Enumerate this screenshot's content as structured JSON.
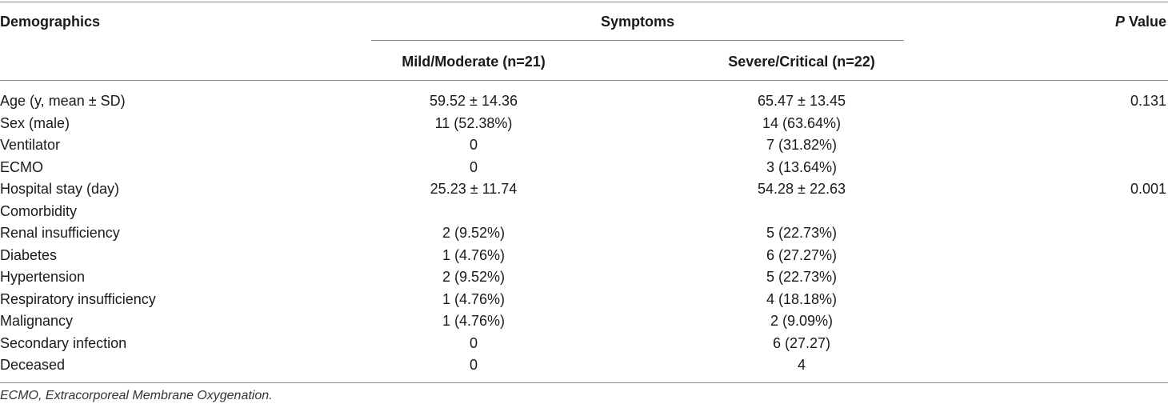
{
  "header": {
    "demographics": "Demographics",
    "symptoms": "Symptoms",
    "p_letter": "P",
    "p_value_word": " Value",
    "col_mild": "Mild/Moderate (n=21)",
    "col_severe": "Severe/Critical (n=22)"
  },
  "rows": [
    {
      "label": "Age (y, mean ± SD)",
      "mild": "59.52 ± 14.36",
      "severe": "65.47 ± 13.45",
      "p": "0.131"
    },
    {
      "label": "Sex (male)",
      "mild": "11 (52.38%)",
      "severe": "14 (63.64%)",
      "p": ""
    },
    {
      "label": "Ventilator",
      "mild": "0",
      "severe": "7 (31.82%)",
      "p": ""
    },
    {
      "label": "ECMO",
      "mild": "0",
      "severe": "3 (13.64%)",
      "p": ""
    },
    {
      "label": "Hospital stay (day)",
      "mild": "25.23 ± 11.74",
      "severe": "54.28 ± 22.63",
      "p": "0.001"
    },
    {
      "label": "Comorbidity",
      "mild": "",
      "severe": "",
      "p": ""
    },
    {
      "label": "Renal insufficiency",
      "mild": "2 (9.52%)",
      "severe": "5 (22.73%)",
      "p": ""
    },
    {
      "label": "Diabetes",
      "mild": "1 (4.76%)",
      "severe": "6 (27.27%)",
      "p": ""
    },
    {
      "label": "Hypertension",
      "mild": "2 (9.52%)",
      "severe": "5 (22.73%)",
      "p": ""
    },
    {
      "label": "Respiratory insufficiency",
      "mild": "1 (4.76%)",
      "severe": "4 (18.18%)",
      "p": ""
    },
    {
      "label": "Malignancy",
      "mild": "1 (4.76%)",
      "severe": "2 (9.09%)",
      "p": ""
    },
    {
      "label": "Secondary infection",
      "mild": "0",
      "severe": "6 (27.27)",
      "p": ""
    },
    {
      "label": "Deceased",
      "mild": "0",
      "severe": "4",
      "p": ""
    }
  ],
  "footnote": "ECMO, Extracorporeal Membrane Oxygenation."
}
